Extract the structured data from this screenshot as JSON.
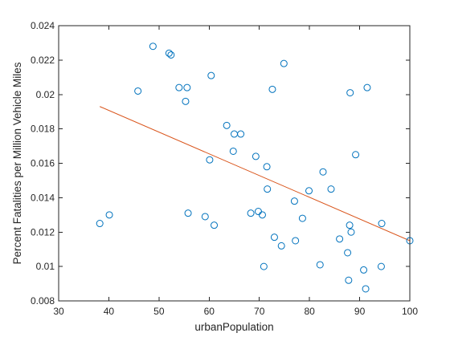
{
  "chart_data": {
    "type": "scatter",
    "title": "",
    "xlabel": "urbanPopulation",
    "ylabel": "Percent Fatalities per Million Vehicle Miles",
    "xlim": [
      30,
      100
    ],
    "ylim": [
      0.008,
      0.024
    ],
    "xticks": [
      30,
      40,
      50,
      60,
      70,
      80,
      90,
      100
    ],
    "yticks": [
      0.008,
      0.01,
      0.012,
      0.014,
      0.016,
      0.018,
      0.02,
      0.022,
      0.024
    ],
    "xtick_labels": [
      "30",
      "40",
      "50",
      "60",
      "70",
      "80",
      "90",
      "100"
    ],
    "ytick_labels": [
      "0.008",
      "0.01",
      "0.012",
      "0.014",
      "0.016",
      "0.018",
      "0.02",
      "0.022",
      "0.024"
    ],
    "grid": false,
    "legend": "none",
    "marker_color": "#0072BD",
    "line_color": "#D95319",
    "series": [
      {
        "type": "scatter",
        "x": [
          38.2,
          40.1,
          45.8,
          48.8,
          52.0,
          52.4,
          54.0,
          55.3,
          55.6,
          55.8,
          59.2,
          60.1,
          60.4,
          61.0,
          63.5,
          64.8,
          65.0,
          66.3,
          68.3,
          69.3,
          69.8,
          70.6,
          70.9,
          71.5,
          71.6,
          72.6,
          73.0,
          74.4,
          74.9,
          77.0,
          77.2,
          78.6,
          79.9,
          82.1,
          82.7,
          84.3,
          86.0,
          87.6,
          87.8,
          88.0,
          88.1,
          88.3,
          89.2,
          90.8,
          91.2,
          91.5,
          94.3,
          94.4,
          100.0
        ],
        "y": [
          0.0125,
          0.013,
          0.0202,
          0.0228,
          0.0224,
          0.0223,
          0.0204,
          0.0196,
          0.0204,
          0.0131,
          0.0129,
          0.0162,
          0.0211,
          0.0124,
          0.0182,
          0.0167,
          0.0177,
          0.0177,
          0.0131,
          0.0164,
          0.0132,
          0.013,
          0.01,
          0.0158,
          0.0145,
          0.0203,
          0.0117,
          0.0112,
          0.0218,
          0.0138,
          0.0115,
          0.0128,
          0.0144,
          0.0101,
          0.0155,
          0.0145,
          0.0116,
          0.0108,
          0.0092,
          0.0124,
          0.0201,
          0.012,
          0.0165,
          0.0098,
          0.0087,
          0.0204,
          0.01,
          0.0125,
          0.0115
        ]
      },
      {
        "type": "line",
        "x": [
          38.2,
          100.0
        ],
        "y": [
          0.0193,
          0.0115
        ]
      }
    ]
  }
}
